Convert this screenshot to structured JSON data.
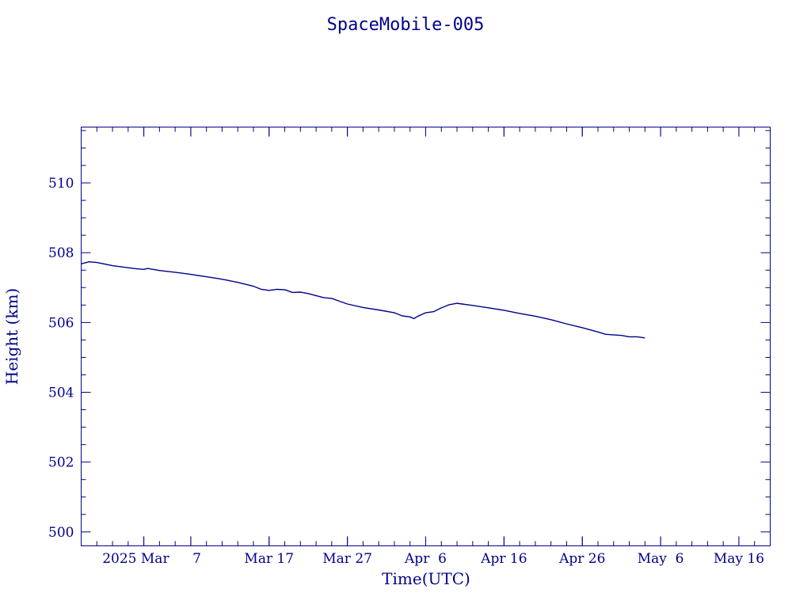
{
  "chart_data": {
    "type": "line",
    "title": "SpaceMobile-005",
    "xlabel": "Time(UTC)",
    "ylabel": "Height (km)",
    "x_ticks": [
      {
        "date": "2025-03-01",
        "label": "2025 Mar"
      },
      {
        "date": "2025-03-07",
        "label": "7"
      },
      {
        "date": "2025-03-17",
        "label": "Mar 17"
      },
      {
        "date": "2025-03-27",
        "label": "Mar 27"
      },
      {
        "date": "2025-04-06",
        "label": "Apr  6"
      },
      {
        "date": "2025-04-16",
        "label": "Apr 16"
      },
      {
        "date": "2025-04-26",
        "label": "Apr 26"
      },
      {
        "date": "2025-05-06",
        "label": "May  6"
      },
      {
        "date": "2025-05-16",
        "label": "May 16"
      }
    ],
    "y_ticks": [
      500,
      502,
      504,
      506,
      508,
      510
    ],
    "xlim": [
      "2025-02-21",
      "2025-05-20"
    ],
    "ylim": [
      499.6,
      511.6
    ],
    "grid": false,
    "series": [
      {
        "points": [
          [
            "2025-02-21",
            507.68
          ],
          [
            "2025-02-22",
            507.74
          ],
          [
            "2025-02-23",
            507.72
          ],
          [
            "2025-02-25",
            507.63
          ],
          [
            "2025-02-27",
            507.57
          ],
          [
            "2025-02-28",
            507.54
          ],
          [
            "2025-03-01",
            507.52
          ],
          [
            "2025-03-01T12",
            507.55
          ],
          [
            "2025-03-03",
            507.49
          ],
          [
            "2025-03-05",
            507.44
          ],
          [
            "2025-03-07",
            507.38
          ],
          [
            "2025-03-09",
            507.31
          ],
          [
            "2025-03-11",
            507.24
          ],
          [
            "2025-03-13",
            507.15
          ],
          [
            "2025-03-15",
            507.04
          ],
          [
            "2025-03-16",
            506.95
          ],
          [
            "2025-03-17",
            506.92
          ],
          [
            "2025-03-18",
            506.95
          ],
          [
            "2025-03-19",
            506.94
          ],
          [
            "2025-03-20",
            506.86
          ],
          [
            "2025-03-21",
            506.87
          ],
          [
            "2025-03-22",
            506.83
          ],
          [
            "2025-03-23",
            506.77
          ],
          [
            "2025-03-24",
            506.71
          ],
          [
            "2025-03-25",
            506.69
          ],
          [
            "2025-03-26",
            506.61
          ],
          [
            "2025-03-27",
            506.53
          ],
          [
            "2025-03-29",
            506.43
          ],
          [
            "2025-03-31",
            506.36
          ],
          [
            "2025-04-02",
            506.28
          ],
          [
            "2025-04-03",
            506.19
          ],
          [
            "2025-04-04",
            506.16
          ],
          [
            "2025-04-04T12",
            506.11
          ],
          [
            "2025-04-05",
            506.18
          ],
          [
            "2025-04-06",
            506.28
          ],
          [
            "2025-04-07",
            506.31
          ],
          [
            "2025-04-08",
            506.42
          ],
          [
            "2025-04-09",
            506.51
          ],
          [
            "2025-04-10",
            506.55
          ],
          [
            "2025-04-12",
            506.49
          ],
          [
            "2025-04-14",
            506.42
          ],
          [
            "2025-04-16",
            506.35
          ],
          [
            "2025-04-18",
            506.26
          ],
          [
            "2025-04-20",
            506.18
          ],
          [
            "2025-04-22",
            506.08
          ],
          [
            "2025-04-24",
            505.96
          ],
          [
            "2025-04-26",
            505.85
          ],
          [
            "2025-04-28",
            505.73
          ],
          [
            "2025-04-29",
            505.66
          ],
          [
            "2025-05-01",
            505.63
          ],
          [
            "2025-05-02",
            505.59
          ],
          [
            "2025-05-03",
            505.59
          ],
          [
            "2025-05-04",
            505.56
          ]
        ]
      }
    ]
  }
}
